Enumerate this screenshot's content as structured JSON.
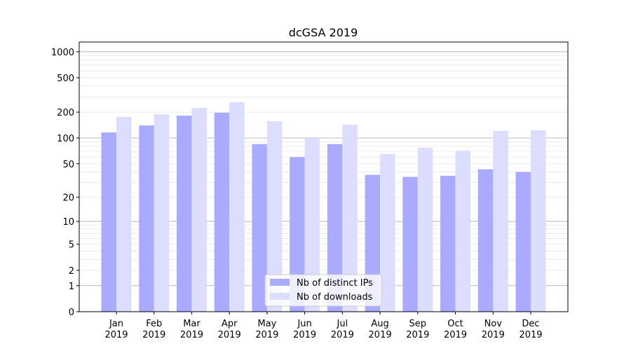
{
  "chart_data": {
    "type": "bar",
    "title": "dcGSA 2019",
    "xlabel": "",
    "ylabel": "",
    "yscale": "log(1+y)",
    "ylim": [
      0,
      1294
    ],
    "yticks": [
      0,
      1,
      2,
      5,
      10,
      20,
      50,
      100,
      200,
      500,
      1000
    ],
    "grid": true,
    "legend_position": "lower-center",
    "categories": [
      "Jan\n2019",
      "Feb\n2019",
      "Mar\n2019",
      "Apr\n2019",
      "May\n2019",
      "Jun\n2019",
      "Jul\n2019",
      "Aug\n2019",
      "Sep\n2019",
      "Oct\n2019",
      "Nov\n2019",
      "Dec\n2019"
    ],
    "series": [
      {
        "name": "Nb of distinct IPs",
        "color": "#aaaaff",
        "values": [
          116,
          140,
          182,
          197,
          85,
          60,
          85,
          37,
          35,
          36,
          43,
          40
        ]
      },
      {
        "name": "Nb of downloads",
        "color": "#ddddff",
        "values": [
          176,
          189,
          224,
          260,
          157,
          100,
          143,
          65,
          77,
          71,
          121,
          123
        ]
      }
    ]
  }
}
